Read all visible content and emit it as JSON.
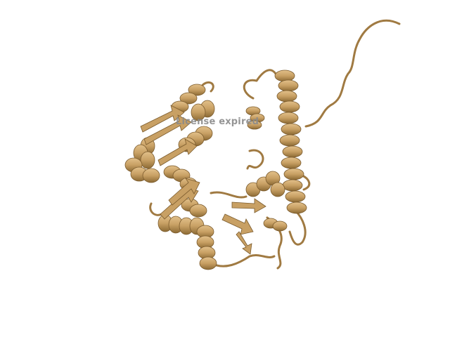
{
  "image": {
    "subject": "protein-ribbon-cartoon",
    "background_color": "#ffffff",
    "ribbon_color": "#c8a064",
    "ribbon_shadow_color": "#8c6a34",
    "ribbon_highlight_color": "#e2c08a"
  },
  "watermark": {
    "text": "License expired",
    "color": "#8a8a8a"
  }
}
